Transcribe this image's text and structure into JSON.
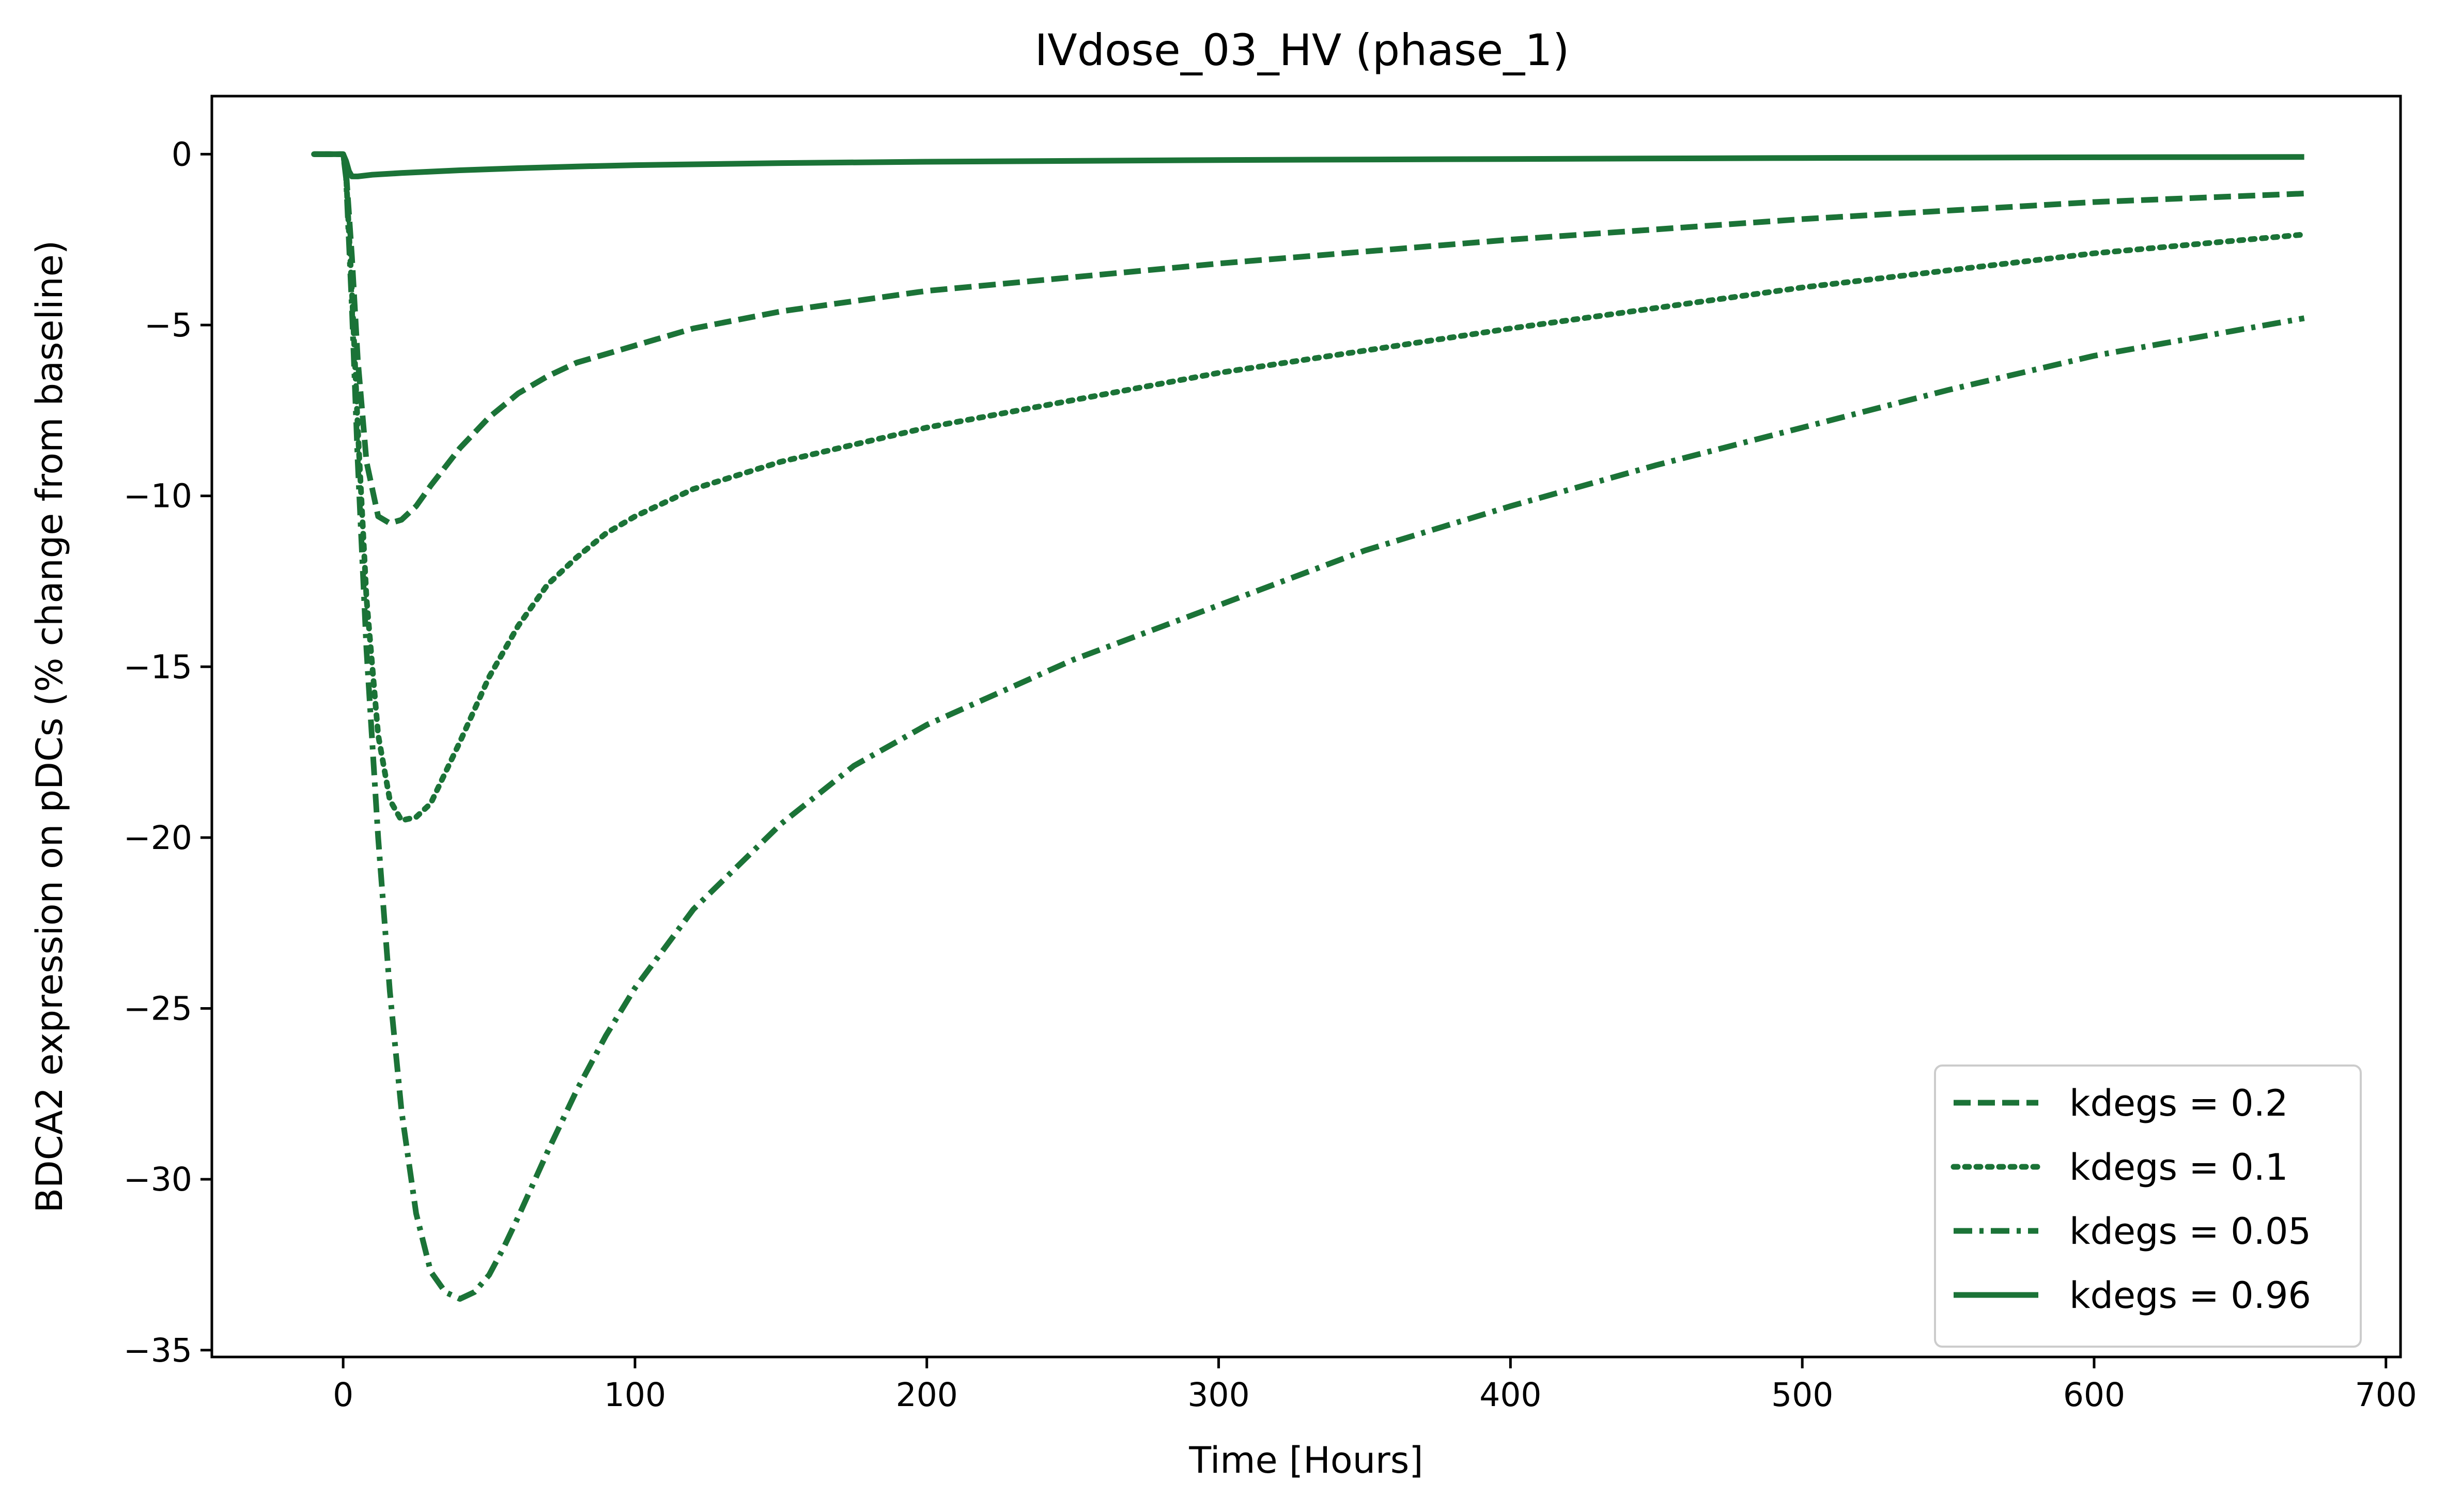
{
  "colors": {
    "series": "#1b7337",
    "axis": "#000000",
    "legend_border": "#cccccc",
    "background": "#ffffff"
  },
  "chart_data": {
    "type": "line",
    "title": "IVdose_03_HV (phase_1)",
    "xlabel": "Time [Hours]",
    "ylabel": "BDCA2 expression on pDCs (% change from baseline)",
    "xlim": [
      -45,
      705
    ],
    "ylim": [
      -35.2,
      1.7
    ],
    "xticks": [
      0,
      100,
      200,
      300,
      400,
      500,
      600,
      700
    ],
    "yticks": [
      0,
      -5,
      -10,
      -15,
      -20,
      -25,
      -30,
      -35
    ],
    "xtick_labels": [
      "0",
      "100",
      "200",
      "300",
      "400",
      "500",
      "600",
      "700"
    ],
    "ytick_labels": [
      "0",
      "−5",
      "−10",
      "−15",
      "−20",
      "−25",
      "−30",
      "−35"
    ],
    "grid": false,
    "legend_position": "lower-right",
    "series": [
      {
        "name": "kdegs = 0.2",
        "style": "dashed",
        "x": [
          -10,
          0,
          1,
          3,
          5,
          8,
          12,
          16,
          20,
          25,
          30,
          40,
          50,
          60,
          70,
          80,
          100,
          120,
          150,
          200,
          250,
          300,
          400,
          500,
          600,
          672
        ],
        "y": [
          0,
          0,
          -0.5,
          -3,
          -6,
          -9,
          -10.6,
          -10.8,
          -10.7,
          -10.3,
          -9.7,
          -8.6,
          -7.7,
          -7.0,
          -6.5,
          -6.1,
          -5.6,
          -5.1,
          -4.6,
          -4.0,
          -3.6,
          -3.2,
          -2.5,
          -1.9,
          -1.4,
          -1.15
        ]
      },
      {
        "name": "kdegs = 0.1",
        "style": "dotted",
        "x": [
          -10,
          0,
          1,
          3,
          5,
          8,
          12,
          16,
          20,
          25,
          30,
          40,
          50,
          60,
          70,
          80,
          90,
          100,
          120,
          150,
          200,
          250,
          300,
          400,
          500,
          600,
          672
        ],
        "y": [
          0,
          0,
          -0.6,
          -4,
          -8,
          -13,
          -17,
          -18.9,
          -19.5,
          -19.4,
          -19.0,
          -17.2,
          -15.3,
          -13.8,
          -12.6,
          -11.8,
          -11.1,
          -10.6,
          -9.8,
          -9.0,
          -8.0,
          -7.2,
          -6.4,
          -5.1,
          -3.9,
          -2.9,
          -2.35
        ]
      },
      {
        "name": "kdegs = 0.05",
        "style": "dashdot",
        "x": [
          -10,
          0,
          1,
          3,
          5,
          8,
          12,
          16,
          20,
          25,
          30,
          35,
          40,
          45,
          50,
          55,
          60,
          70,
          80,
          90,
          100,
          120,
          150,
          175,
          200,
          250,
          300,
          350,
          400,
          450,
          500,
          550,
          600,
          672
        ],
        "y": [
          0,
          0,
          -0.7,
          -4.5,
          -9,
          -14.5,
          -20,
          -24.5,
          -28,
          -31,
          -32.7,
          -33.3,
          -33.5,
          -33.3,
          -32.8,
          -32.0,
          -31.1,
          -29.2,
          -27.4,
          -25.8,
          -24.4,
          -22.1,
          -19.6,
          -17.9,
          -16.7,
          -14.8,
          -13.2,
          -11.6,
          -10.3,
          -9.1,
          -8.0,
          -6.9,
          -5.9,
          -4.8
        ]
      },
      {
        "name": "kdegs = 0.96",
        "style": "solid",
        "x": [
          -10,
          0,
          1,
          2,
          3,
          5,
          10,
          20,
          40,
          60,
          80,
          100,
          150,
          200,
          300,
          400,
          500,
          600,
          672
        ],
        "y": [
          0,
          0,
          -0.2,
          -0.5,
          -0.65,
          -0.65,
          -0.6,
          -0.55,
          -0.47,
          -0.41,
          -0.36,
          -0.32,
          -0.26,
          -0.22,
          -0.17,
          -0.14,
          -0.11,
          -0.09,
          -0.08
        ]
      }
    ]
  }
}
